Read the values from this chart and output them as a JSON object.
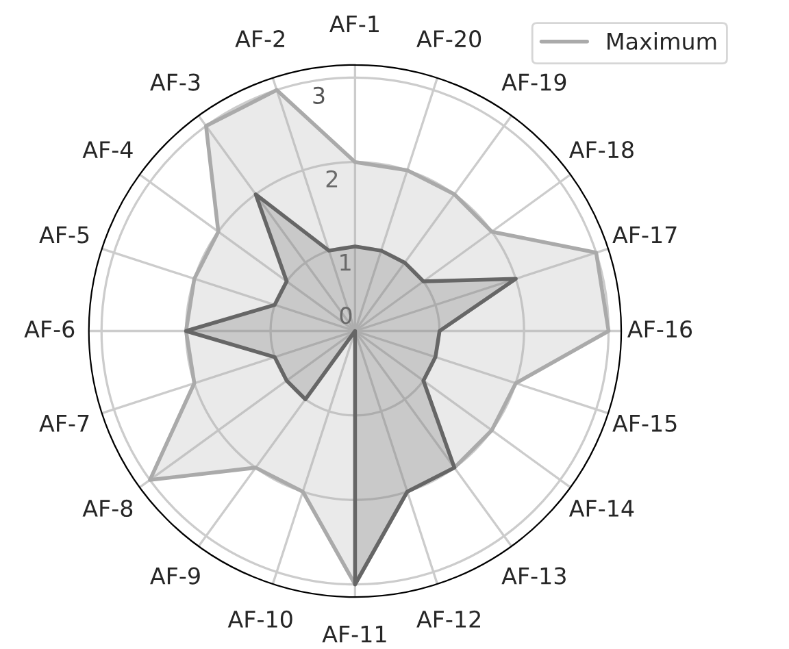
{
  "chart_data": {
    "type": "radar",
    "categories": [
      "AF-1",
      "AF-20",
      "AF-19",
      "AF-18",
      "AF-17",
      "AF-16",
      "AF-15",
      "AF-14",
      "AF-13",
      "AF-12",
      "AF-11",
      "AF-10",
      "AF-9",
      "AF-8",
      "AF-7",
      "AF-6",
      "AF-5",
      "AF-4",
      "AF-3",
      "AF-2"
    ],
    "series": [
      {
        "name": "Maximum",
        "color": "#aaaaaa",
        "values": [
          2,
          2,
          2,
          2,
          3,
          3,
          2,
          2,
          2,
          2,
          3,
          2,
          2,
          3,
          2,
          2,
          2,
          2,
          3,
          3
        ]
      },
      {
        "color": "#666666",
        "values": [
          1,
          1,
          1,
          1,
          2,
          1,
          1,
          1,
          2,
          2,
          3,
          0,
          1,
          1,
          1,
          2,
          1,
          1,
          2,
          1
        ]
      }
    ],
    "ylim": [
      0,
      3.15
    ],
    "yticks": [
      0,
      1,
      2,
      3
    ],
    "grid": true,
    "legend": "top right"
  }
}
